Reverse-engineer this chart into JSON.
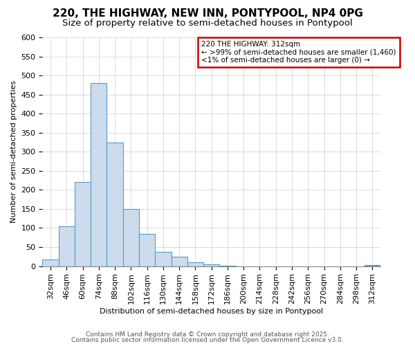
{
  "title": "220, THE HIGHWAY, NEW INN, PONTYPOOL, NP4 0PG",
  "subtitle": "Size of property relative to semi-detached houses in Pontypool",
  "xlabel": "Distribution of semi-detached houses by size in Pontypool",
  "ylabel": "Number of semi-detached properties",
  "bar_color": "#ccdcec",
  "bar_edge_color": "#5599cc",
  "categories": [
    "32sqm",
    "46sqm",
    "60sqm",
    "74sqm",
    "88sqm",
    "102sqm",
    "116sqm",
    "130sqm",
    "144sqm",
    "158sqm",
    "172sqm",
    "186sqm",
    "200sqm",
    "214sqm",
    "228sqm",
    "242sqm",
    "256sqm",
    "270sqm",
    "284sqm",
    "298sqm",
    "312sqm"
  ],
  "values": [
    18,
    105,
    220,
    480,
    325,
    150,
    85,
    38,
    25,
    10,
    5,
    1,
    0,
    0,
    0,
    0,
    0,
    0,
    0,
    0,
    3
  ],
  "ylim": [
    0,
    600
  ],
  "yticks": [
    0,
    50,
    100,
    150,
    200,
    250,
    300,
    350,
    400,
    450,
    500,
    550,
    600
  ],
  "annotation_title": "220 THE HIGHWAY: 312sqm",
  "annotation_line1": "← >99% of semi-detached houses are smaller (1,460)",
  "annotation_line2": "<1% of semi-detached houses are larger (0) →",
  "annotation_box_color": "#ffffff",
  "annotation_box_edge": "#cc0000",
  "highlight_bar_index": 20,
  "highlight_bar_color": "#5599cc",
  "footer1": "Contains HM Land Registry data © Crown copyright and database right 2025.",
  "footer2": "Contains public sector information licensed under the Open Government Licence v3.0.",
  "background_color": "#ffffff",
  "grid_color": "#cccccc",
  "title_fontsize": 11,
  "subtitle_fontsize": 9.5,
  "ylabel_fontsize": 8,
  "xlabel_fontsize": 8,
  "tick_fontsize": 8,
  "footer_fontsize": 6.5
}
